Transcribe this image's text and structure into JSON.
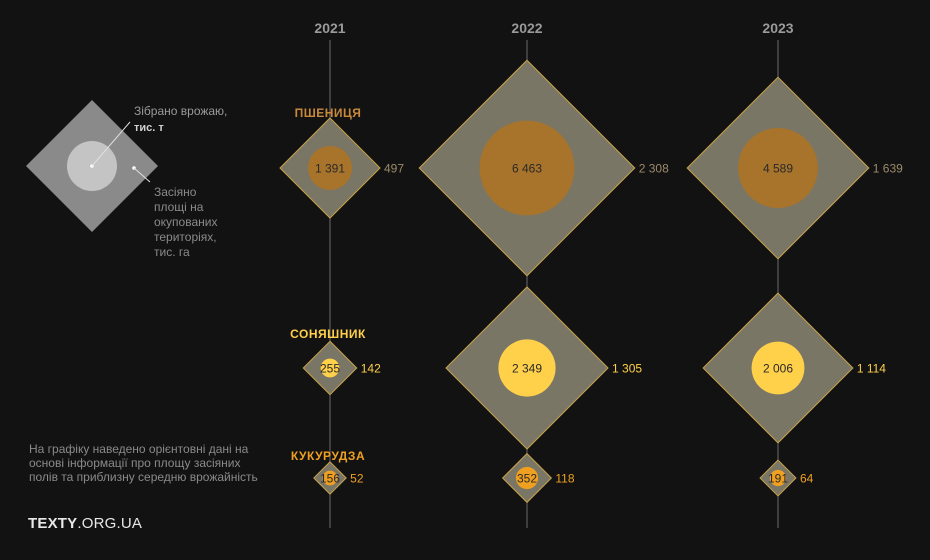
{
  "colors": {
    "background": "#121212",
    "diamond_fill": "#7a7666",
    "diamond_stroke": "#c9a44a",
    "wheat": "#a8732a",
    "sunflower": "#ffd04a",
    "corn": "#f0a020",
    "legend_diamond": "#8a8a8a",
    "legend_circle": "#c4c4c4",
    "axis": "#6a6a6a"
  },
  "legend": {
    "harvest_label": "Зібрано врожаю,",
    "harvest_unit": "тис. т",
    "area_lines": [
      "Засіяно",
      "площі на",
      "окупованих",
      "територіях,",
      "тис. га"
    ]
  },
  "note": "На графіку наведено орієнтовні дані на основі інформації про площу засіяних полів та приблизну середню врожайність",
  "brand": {
    "bold": "TEXTY",
    "rest": ".ORG.UA"
  },
  "chart_data": {
    "type": "scatter",
    "years": [
      "2021",
      "2022",
      "2023"
    ],
    "series": [
      {
        "name": "ПШЕНИЦЯ",
        "color_key": "wheat",
        "harvest": [
          1391,
          6463,
          4589
        ],
        "area": [
          497,
          2308,
          1639
        ],
        "harvest_labels": [
          "1 391",
          "6 463",
          "4 589"
        ],
        "area_labels": [
          "497",
          "2 308",
          "1 639"
        ]
      },
      {
        "name": "СОНЯШНИК",
        "color_key": "sunflower",
        "harvest": [
          255,
          2349,
          2006
        ],
        "area": [
          142,
          1305,
          1114
        ],
        "harvest_labels": [
          "255",
          "2 349",
          "2 006"
        ],
        "area_labels": [
          "142",
          "1 305",
          "1 114"
        ]
      },
      {
        "name": "КУКУРУДЗА",
        "color_key": "corn",
        "harvest": [
          156,
          352,
          191
        ],
        "area": [
          52,
          118,
          64
        ],
        "harvest_labels": [
          "156",
          "352",
          "191"
        ],
        "area_labels": [
          "52",
          "118",
          "64"
        ]
      }
    ]
  }
}
